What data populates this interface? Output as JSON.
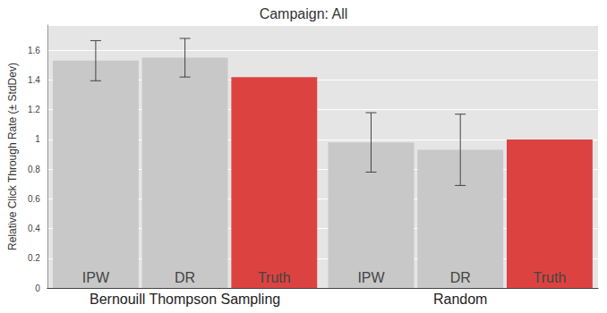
{
  "chart_data": {
    "type": "bar",
    "title": "Campaign: All",
    "ylabel": "Relative Click Through Rate (± StdDev)",
    "categories": [
      "Bernouill Thompson Sampling",
      "Random"
    ],
    "series": [
      {
        "name": "IPW",
        "color": "#c8c8c8",
        "values": [
          1.53,
          0.98
        ],
        "errors": [
          0.135,
          0.2
        ]
      },
      {
        "name": "DR",
        "color": "#c8c8c8",
        "values": [
          1.55,
          0.93
        ],
        "errors": [
          0.13,
          0.24
        ]
      },
      {
        "name": "Truth",
        "color": "#dc4340",
        "values": [
          1.42,
          1.0
        ],
        "errors": [
          null,
          null
        ]
      }
    ],
    "ylim": [
      0,
      1.77
    ],
    "yticks": [
      0,
      0.2,
      0.4,
      0.6,
      0.8,
      1,
      1.2,
      1.4,
      1.6
    ],
    "grid": true
  }
}
